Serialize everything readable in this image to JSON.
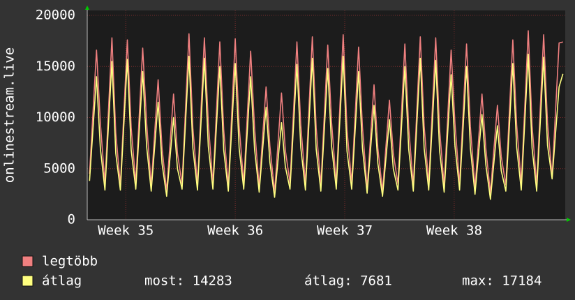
{
  "chart_data": {
    "type": "line",
    "y_label": "onlinestream.live",
    "x": [
      0.15,
      0.6,
      0.85,
      1.15,
      1.6,
      1.85,
      2.15,
      2.6,
      2.85,
      3.15,
      3.6,
      3.85,
      4.15,
      4.6,
      4.85,
      5.15,
      5.6,
      5.85,
      6.15,
      6.6,
      6.85,
      7.15,
      7.6,
      7.85,
      8.15,
      8.6,
      8.85,
      9.15,
      9.6,
      9.85,
      10.15,
      10.6,
      10.85,
      11.15,
      11.6,
      11.85,
      12.15,
      12.6,
      12.85,
      13.15,
      13.6,
      13.85,
      14.15,
      14.6,
      14.85,
      15.15,
      15.6,
      15.85,
      16.15,
      16.6,
      16.85,
      17.15,
      17.6,
      17.85,
      18.15,
      18.6,
      18.85,
      19.15,
      19.6,
      19.85,
      20.15,
      20.6,
      20.85,
      21.15,
      21.6,
      21.85,
      22.15,
      22.6,
      22.85,
      23.15,
      23.6,
      23.85,
      24.15,
      24.6,
      24.85,
      25.15,
      25.6,
      25.85,
      26.15,
      26.6,
      26.85,
      27.15,
      27.6,
      27.85,
      28.15,
      28.6,
      28.85,
      29.15,
      29.6,
      29.85,
      30.15,
      30.6,
      30.85
    ],
    "series": [
      {
        "name": "legtöbb",
        "color": "#f08080",
        "values": [
          4500,
          16600,
          9500,
          3500,
          17800,
          8500,
          3400,
          17600,
          9000,
          3600,
          16800,
          9500,
          3300,
          13700,
          7000,
          2800,
          12300,
          6500,
          3500,
          18200,
          9000,
          3400,
          17800,
          9500,
          3500,
          17400,
          8800,
          3300,
          17700,
          9200,
          3500,
          16500,
          9000,
          3200,
          13000,
          7200,
          2700,
          12400,
          6800,
          3600,
          17400,
          9300,
          3500,
          17900,
          9000,
          3400,
          17100,
          9500,
          3500,
          18100,
          8800,
          3600,
          16900,
          9100,
          3100,
          13200,
          7000,
          2800,
          11700,
          6500,
          3500,
          17200,
          9000,
          3400,
          17900,
          9200,
          3500,
          17800,
          8900,
          3300,
          16600,
          9400,
          3500,
          17200,
          9100,
          3100,
          12300,
          7000,
          2600,
          11200,
          6200,
          3400,
          17600,
          9300,
          3500,
          18500,
          9200,
          3400,
          18100,
          9500,
          4200,
          17300,
          17400
        ]
      },
      {
        "name": "átlag",
        "color": "#ffff80",
        "values": [
          3800,
          14000,
          7000,
          2900,
          15500,
          6500,
          2900,
          15700,
          6800,
          3000,
          14500,
          7200,
          2800,
          11500,
          5500,
          2300,
          10000,
          5000,
          3000,
          16000,
          7000,
          2900,
          15800,
          7200,
          3000,
          15000,
          6800,
          2800,
          15300,
          7000,
          3000,
          14000,
          6900,
          2700,
          11000,
          5600,
          2200,
          9500,
          5200,
          3000,
          15200,
          7100,
          2900,
          15800,
          6900,
          2800,
          14800,
          7200,
          3000,
          16000,
          6700,
          3000,
          14500,
          7000,
          2600,
          11200,
          5500,
          2300,
          9800,
          5000,
          2900,
          15000,
          6900,
          2800,
          15800,
          7000,
          2900,
          15600,
          6800,
          2700,
          14200,
          7200,
          2900,
          15000,
          7000,
          2500,
          10300,
          5400,
          2000,
          9200,
          4800,
          2800,
          15300,
          7100,
          2900,
          16200,
          7000,
          2800,
          15900,
          7300,
          4000,
          13000,
          14283
        ]
      }
    ],
    "xlim": [
      0,
      31
    ],
    "xticks": [
      {
        "value": 2.5,
        "label": "Week 35"
      },
      {
        "value": 9.6,
        "label": "Week 36"
      },
      {
        "value": 16.7,
        "label": "Week 37"
      },
      {
        "value": 23.8,
        "label": "Week 38"
      }
    ],
    "ylim": [
      0,
      20000
    ],
    "yticks": [
      0,
      5000,
      10000,
      15000,
      20000
    ],
    "grid": true,
    "stats": [
      "most: 14283",
      "átlag: 7681",
      "max: 17184"
    ]
  }
}
